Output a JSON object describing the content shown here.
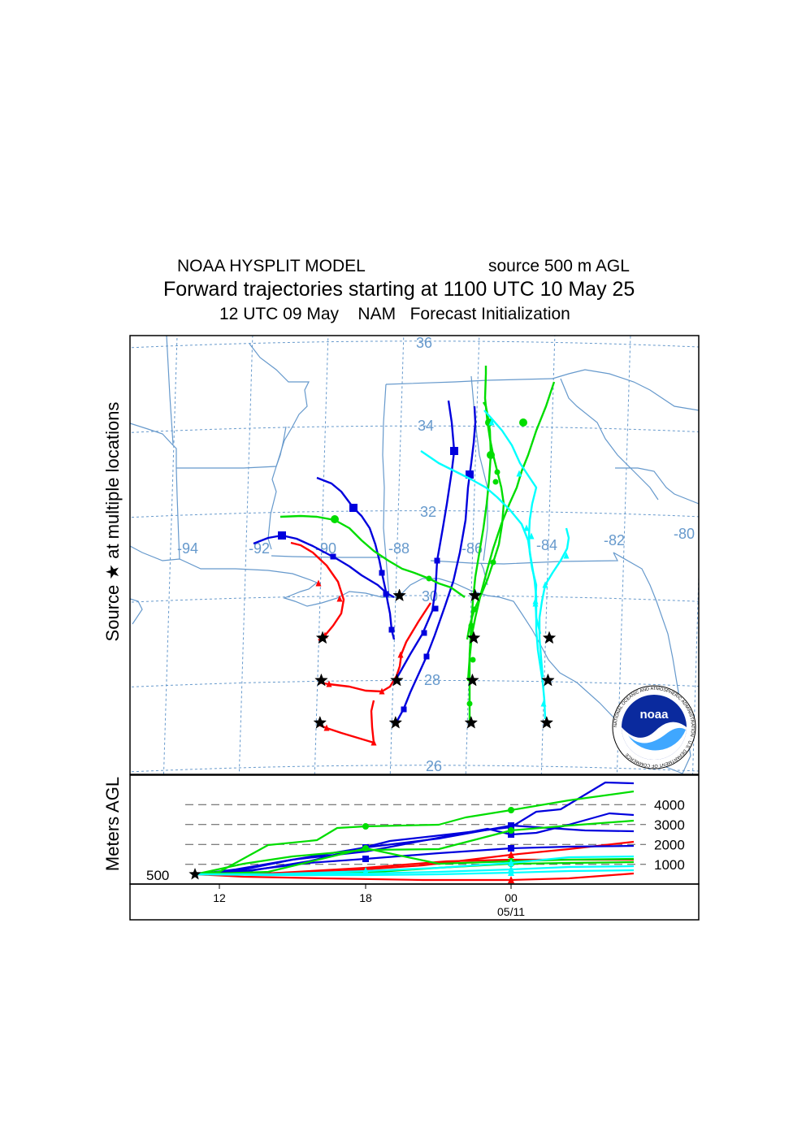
{
  "header": {
    "model": "NOAA HYSPLIT MODEL",
    "source": "source 500 m AGL",
    "title": "Forward trajectories starting at 1100 UTC 10 May 25",
    "subtitle_time": "12 UTC 09 May",
    "subtitle_met": "NAM",
    "subtitle_type": "Forecast Initialization"
  },
  "chart_data": {
    "type": "line",
    "map": {
      "ylabel": "Source ★ at multiple locations",
      "lon_labels": [
        "-94",
        "-92",
        "-90",
        "-88",
        "-86",
        "-84",
        "-82",
        "-80"
      ],
      "lat_labels": [
        "36",
        "34",
        "32",
        "30",
        "28",
        "26"
      ],
      "grid": true,
      "logo_text": "noaa",
      "logo_ring_text": "NATIONAL OCEANIC AND ATMOSPHERIC ADMINISTRATION · U.S. DEPARTMENT OF COMMERCE"
    },
    "height_panel": {
      "ylabel": "Meters AGL",
      "start_label": "500",
      "ref_levels": [
        "4000",
        "3000",
        "2000",
        "1000"
      ],
      "x_ticks": [
        "12",
        "18",
        "00"
      ],
      "date_label": "05/11"
    },
    "series_colors": {
      "red": "#ff0000",
      "blue": "#0000dd",
      "green": "#00dd00",
      "cyan": "#00ffff"
    },
    "sources": [
      {
        "color": "red",
        "lon": -89.9,
        "lat": 29.0
      },
      {
        "color": "red",
        "lon": -89.9,
        "lat": 28.0
      },
      {
        "color": "red",
        "lon": -89.9,
        "lat": 27.0
      },
      {
        "color": "blue",
        "lon": -87.9,
        "lat": 30.0
      },
      {
        "color": "blue",
        "lon": -87.9,
        "lat": 28.0
      },
      {
        "color": "blue",
        "lon": -87.9,
        "lat": 27.0
      },
      {
        "color": "green",
        "lon": -85.9,
        "lat": 30.0
      },
      {
        "color": "green",
        "lon": -85.9,
        "lat": 29.0
      },
      {
        "color": "green",
        "lon": -85.9,
        "lat": 28.0
      },
      {
        "color": "green",
        "lon": -85.9,
        "lat": 27.0
      },
      {
        "color": "cyan",
        "lon": -83.9,
        "lat": 29.0
      },
      {
        "color": "cyan",
        "lon": -83.9,
        "lat": 28.0
      },
      {
        "color": "cyan",
        "lon": -83.9,
        "lat": 27.0
      }
    ]
  }
}
